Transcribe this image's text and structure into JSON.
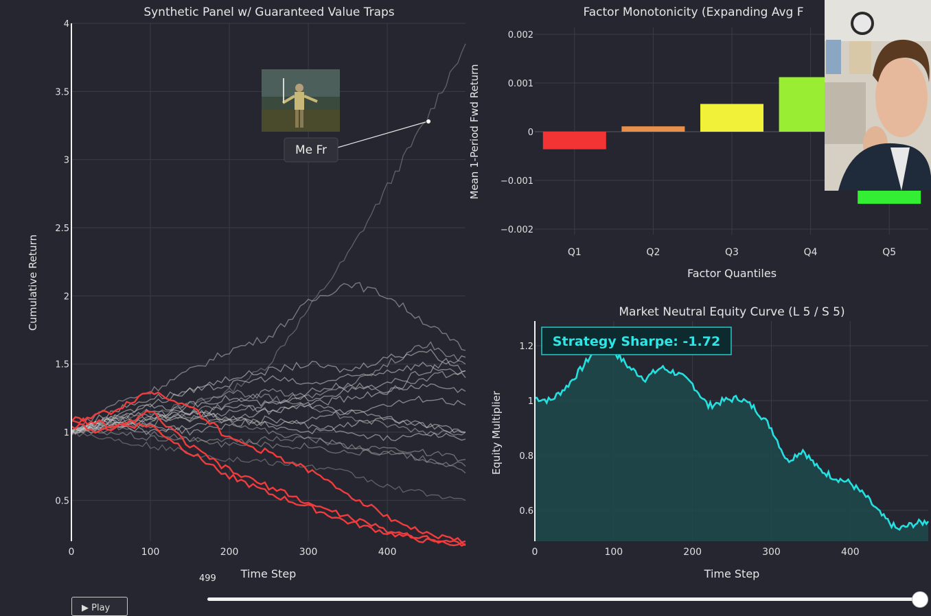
{
  "charts": {
    "left": {
      "title": "Synthetic Panel w/ Guaranteed Value Traps",
      "xlabel": "Time Step",
      "ylabel": "Cumulative Return",
      "xticks": [
        "0",
        "100",
        "200",
        "300",
        "400"
      ],
      "yticks": [
        "0.5",
        "1",
        "1.5",
        "2",
        "2.5",
        "3",
        "3.5",
        "4"
      ],
      "annotation": "Me Fr"
    },
    "right_top": {
      "title": "Factor Monotonicity (Expanding Avg F",
      "xlabel": "Factor Quantiles",
      "ylabel": "Mean 1-Period Fwd Return",
      "yticks": [
        "0.002",
        "0.001",
        "0",
        "−0.001",
        "−0.002"
      ]
    },
    "right_bottom": {
      "title": "Market Neutral Equity Curve (L 5 / S 5)",
      "xlabel": "Time Step",
      "ylabel": "Equity Multiplier",
      "xticks": [
        "0",
        "100",
        "200",
        "300",
        "400"
      ],
      "yticks": [
        "0.6",
        "0.8",
        "1",
        "1.2"
      ],
      "annotation": "Strategy Sharpe: -1.72"
    }
  },
  "controls": {
    "play_label": "▶ Play",
    "slider_value": "499",
    "slider_fraction": 1.0
  },
  "colors": {
    "background": "#262631",
    "grid": "#3b3c48",
    "trap_series": "#f03c3c",
    "other_series": "#c9c9c9",
    "equity_line": "#26e0e0",
    "equity_fill": "#1d4a4c"
  },
  "chart_data": [
    {
      "type": "line",
      "title": "Synthetic Panel w/ Guaranteed Value Traps",
      "xlabel": "Time Step",
      "ylabel": "Cumulative Return",
      "xlim": [
        0,
        499
      ],
      "ylim": [
        0.2,
        4.0
      ],
      "series_style": "20 simulated paths; 3 value-trap paths highlighted red",
      "series": [
        {
          "x": [
            0,
            50,
            100,
            150,
            200,
            250,
            300,
            350,
            400,
            450,
            499
          ],
          "values": [
            1.0,
            1.1,
            1.15,
            1.2,
            1.3,
            1.5,
            1.9,
            2.3,
            2.8,
            3.3,
            3.85
          ],
          "color": "#8c8c8c"
        },
        {
          "x": [
            0,
            50,
            100,
            150,
            200,
            250,
            300,
            350,
            400,
            450,
            499
          ],
          "values": [
            1.0,
            1.2,
            1.3,
            1.45,
            1.6,
            1.7,
            1.95,
            2.1,
            2.0,
            1.8,
            1.6
          ],
          "color": "#bdbdbd"
        },
        {
          "x": [
            0,
            50,
            100,
            150,
            200,
            250,
            300,
            350,
            400,
            450,
            499
          ],
          "values": [
            1.0,
            1.1,
            1.2,
            1.3,
            1.4,
            1.45,
            1.5,
            1.45,
            1.55,
            1.6,
            1.45
          ],
          "color": "#d0d0d0"
        },
        {
          "x": [
            0,
            50,
            100,
            150,
            200,
            250,
            300,
            350,
            400,
            450,
            499
          ],
          "values": [
            1.0,
            1.15,
            1.25,
            1.3,
            1.35,
            1.4,
            1.35,
            1.4,
            1.45,
            1.5,
            1.4
          ],
          "color": "#d0d0d0"
        },
        {
          "x": [
            0,
            50,
            100,
            150,
            200,
            250,
            300,
            350,
            400,
            450,
            499
          ],
          "values": [
            1.0,
            1.05,
            1.1,
            1.2,
            1.25,
            1.2,
            1.25,
            1.3,
            1.35,
            1.45,
            1.55
          ],
          "color": "#d0d0d0"
        },
        {
          "x": [
            0,
            50,
            100,
            150,
            200,
            250,
            300,
            350,
            400,
            450,
            499
          ],
          "values": [
            1.0,
            1.1,
            1.15,
            1.1,
            1.2,
            1.15,
            1.2,
            1.25,
            1.3,
            1.35,
            1.3
          ],
          "color": "#d0d0d0"
        },
        {
          "x": [
            0,
            50,
            100,
            150,
            200,
            250,
            300,
            350,
            400,
            450,
            499
          ],
          "values": [
            1.0,
            1.05,
            1.1,
            1.15,
            1.1,
            1.15,
            1.2,
            1.15,
            1.2,
            1.25,
            1.2
          ],
          "color": "#d0d0d0"
        },
        {
          "x": [
            0,
            50,
            100,
            150,
            200,
            250,
            300,
            350,
            400,
            450,
            499
          ],
          "values": [
            1.0,
            1.1,
            1.2,
            1.15,
            1.1,
            1.05,
            1.1,
            1.15,
            1.1,
            1.05,
            1.0
          ],
          "color": "#d0d0d0"
        },
        {
          "x": [
            0,
            50,
            100,
            150,
            200,
            250,
            300,
            350,
            400,
            450,
            499
          ],
          "values": [
            1.0,
            1.05,
            1.0,
            1.05,
            1.1,
            1.05,
            1.0,
            1.05,
            1.1,
            1.05,
            1.0
          ],
          "color": "#d0d0d0"
        },
        {
          "x": [
            0,
            50,
            100,
            150,
            200,
            250,
            300,
            350,
            400,
            450,
            499
          ],
          "values": [
            1.0,
            1.1,
            1.05,
            1.0,
            1.05,
            1.1,
            1.05,
            1.0,
            0.95,
            1.0,
            0.95
          ],
          "color": "#d0d0d0"
        },
        {
          "x": [
            0,
            50,
            100,
            150,
            200,
            250,
            300,
            350,
            400,
            450,
            499
          ],
          "values": [
            1.0,
            1.05,
            1.1,
            1.2,
            1.3,
            1.25,
            1.2,
            1.1,
            1.05,
            1.0,
            1.0
          ],
          "color": "#b5b5b5"
        },
        {
          "x": [
            0,
            50,
            100,
            150,
            200,
            250,
            300,
            350,
            400,
            450,
            499
          ],
          "values": [
            1.0,
            1.0,
            0.95,
            0.95,
            0.9,
            0.95,
            0.95,
            0.9,
            0.85,
            0.8,
            0.75
          ],
          "color": "#a0a0a0"
        },
        {
          "x": [
            0,
            50,
            100,
            150,
            200,
            250,
            300,
            350,
            400,
            450,
            499
          ],
          "values": [
            1.0,
            1.05,
            1.0,
            0.95,
            0.95,
            0.9,
            0.9,
            0.85,
            0.85,
            0.8,
            0.7
          ],
          "color": "#a0a0a0"
        },
        {
          "x": [
            0,
            50,
            100,
            150,
            200,
            250,
            300,
            350,
            400,
            450,
            499
          ],
          "values": [
            1.0,
            0.95,
            0.9,
            0.85,
            0.8,
            0.78,
            0.75,
            0.7,
            0.6,
            0.55,
            0.5
          ],
          "color": "#8c8c8c"
        },
        {
          "x": [
            0,
            50,
            100,
            150,
            200,
            250,
            300,
            350,
            400,
            450,
            499
          ],
          "values": [
            1.0,
            1.1,
            1.05,
            1.15,
            1.2,
            1.3,
            1.25,
            1.35,
            1.5,
            1.65,
            1.5
          ],
          "color": "#bdbdbd"
        },
        {
          "x": [
            0,
            50,
            100,
            150,
            200,
            250,
            300,
            350,
            400,
            450,
            499
          ],
          "values": [
            1.0,
            1.08,
            1.12,
            1.1,
            1.15,
            1.2,
            1.3,
            1.35,
            1.3,
            1.4,
            1.45
          ],
          "color": "#c9c9c9"
        },
        {
          "x": [
            0,
            50,
            100,
            150,
            200,
            250,
            300,
            350,
            400,
            450,
            499
          ],
          "values": [
            1.0,
            1.02,
            1.08,
            1.12,
            1.08,
            1.0,
            0.95,
            0.9,
            0.88,
            0.85,
            0.8
          ],
          "color": "#a8a8a8"
        },
        {
          "x": [
            0,
            50,
            100,
            150,
            200,
            250,
            300,
            350,
            400,
            450,
            499
          ],
          "values": [
            1.08,
            1.15,
            1.3,
            1.2,
            0.95,
            0.85,
            0.72,
            0.55,
            0.38,
            0.25,
            0.2
          ],
          "color": "#f03c3c"
        },
        {
          "x": [
            0,
            50,
            100,
            150,
            200,
            250,
            300,
            350,
            400,
            450,
            499
          ],
          "values": [
            1.05,
            1.0,
            1.15,
            0.9,
            0.72,
            0.6,
            0.48,
            0.38,
            0.28,
            0.22,
            0.18
          ],
          "color": "#f03c3c"
        },
        {
          "x": [
            0,
            50,
            100,
            150,
            200,
            250,
            300,
            350,
            400,
            450,
            499
          ],
          "values": [
            1.1,
            1.05,
            1.05,
            0.85,
            0.68,
            0.55,
            0.45,
            0.34,
            0.26,
            0.2,
            0.17
          ],
          "color": "#f03c3c"
        }
      ]
    },
    {
      "type": "bar",
      "title": "Factor Monotonicity (Expanding Avg F",
      "xlabel": "Factor Quantiles",
      "ylabel": "Mean 1-Period Fwd Return",
      "categories": [
        "Q1",
        "Q2",
        "Q3",
        "Q4",
        "Q5"
      ],
      "values": [
        -0.00036,
        0.00011,
        0.00057,
        0.00112,
        -0.00148
      ],
      "colors": [
        "#f23434",
        "#e8904a",
        "#f1f13a",
        "#99ee33",
        "#33ee33"
      ],
      "ylim": [
        -0.0024,
        0.0024
      ]
    },
    {
      "type": "area",
      "title": "Market Neutral Equity Curve (L 5 / S 5)",
      "xlabel": "Time Step",
      "ylabel": "Equity Multiplier",
      "xlim": [
        0,
        499
      ],
      "ylim": [
        0.49,
        1.29
      ],
      "x": [
        0,
        20,
        40,
        60,
        80,
        100,
        120,
        140,
        160,
        180,
        200,
        220,
        240,
        260,
        280,
        300,
        320,
        340,
        360,
        380,
        400,
        420,
        440,
        460,
        480,
        499
      ],
      "values": [
        1.01,
        1.0,
        1.05,
        1.12,
        1.2,
        1.18,
        1.12,
        1.08,
        1.12,
        1.1,
        1.06,
        0.98,
        1.0,
        1.01,
        0.97,
        0.9,
        0.78,
        0.82,
        0.75,
        0.72,
        0.7,
        0.65,
        0.58,
        0.53,
        0.55,
        0.56
      ]
    }
  ]
}
